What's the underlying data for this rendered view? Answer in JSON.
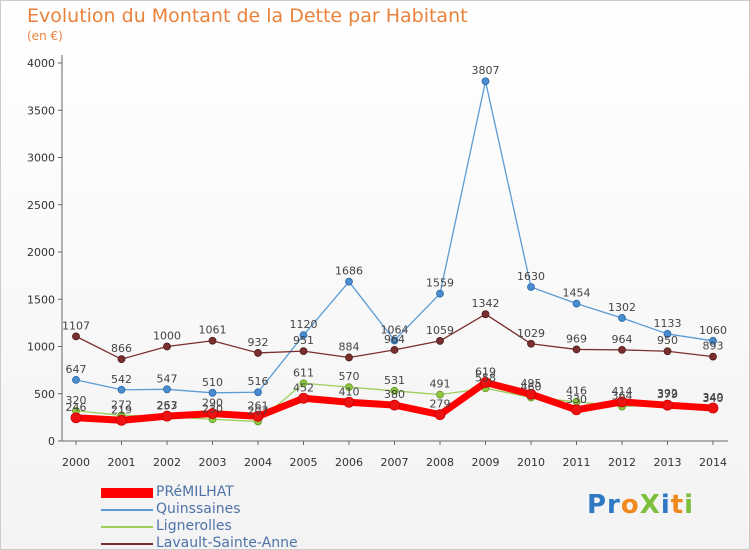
{
  "title": "Evolution du Montant de la Dette par Habitant",
  "unit": "(en €)",
  "logo_text": "ProXiti",
  "chart_data": {
    "type": "line",
    "title": "Evolution du Montant de la Dette par Habitant",
    "subtitle": "(en €)",
    "xlabel": "",
    "ylabel": "",
    "ylim": [
      0,
      4000
    ],
    "yticks": [
      0,
      500,
      1000,
      1500,
      2000,
      2500,
      3000,
      3500,
      4000
    ],
    "x": [
      2000,
      2001,
      2002,
      2003,
      2004,
      2005,
      2006,
      2007,
      2008,
      2009,
      2010,
      2011,
      2012,
      2013,
      2014
    ],
    "grid": false,
    "legend_position": "bottom-left",
    "series": [
      {
        "name": "PRéMILHAT",
        "color": "#ff0000",
        "values": [
          246,
          219,
          263,
          290,
          261,
          452,
          410,
          380,
          279,
          619,
          495,
          330,
          414,
          379,
          349
        ]
      },
      {
        "name": "Quinssaines",
        "color": "#5b9bd5",
        "values": [
          647,
          542,
          547,
          510,
          516,
          1120,
          1686,
          1064,
          1559,
          3807,
          1630,
          1454,
          1302,
          1133,
          1060
        ]
      },
      {
        "name": "Lignerolles",
        "color": "#9acd5a",
        "values": [
          320,
          272,
          257,
          230,
          207,
          611,
          570,
          531,
          491,
          558,
          460,
          416,
          364,
          392,
          340
        ]
      },
      {
        "name": "Lavault-Sainte-Anne",
        "color": "#7b2e2e",
        "values": [
          1107,
          866,
          1000,
          1061,
          932,
          951,
          884,
          964,
          1059,
          1342,
          1029,
          969,
          964,
          950,
          893
        ]
      }
    ]
  }
}
